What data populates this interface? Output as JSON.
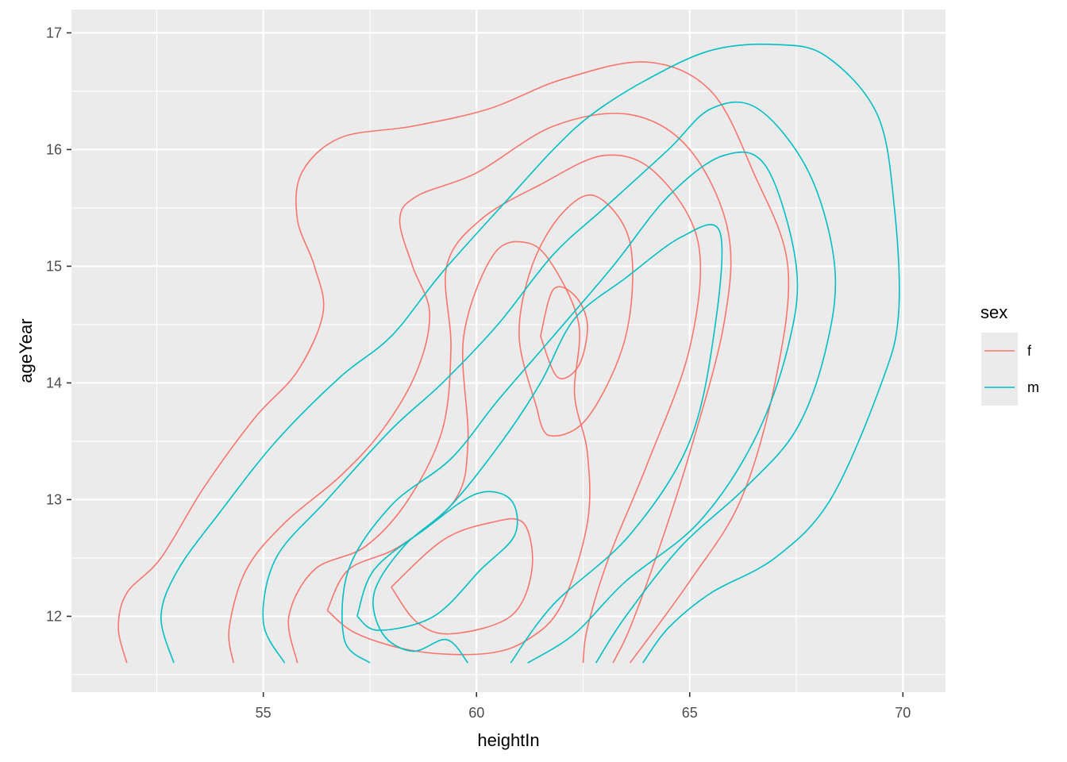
{
  "chart_data": {
    "type": "line",
    "subtype": "2d-density-contour",
    "title": "",
    "xlabel": "heightIn",
    "ylabel": "ageYear",
    "xlim": [
      50.5,
      71.0
    ],
    "ylim": [
      11.35,
      17.2
    ],
    "x_ticks": [
      55,
      60,
      65,
      70
    ],
    "x_tick_labels": [
      "55",
      "60",
      "65",
      "70"
    ],
    "y_ticks": [
      12,
      13,
      14,
      15,
      16,
      17
    ],
    "y_tick_labels": [
      "12",
      "13",
      "14",
      "15",
      "16",
      "17"
    ],
    "grid": true,
    "background": "#ebebeb",
    "legend": {
      "title": "sex",
      "position": "right",
      "entries": [
        {
          "label": "f",
          "color": "#F8766D"
        },
        {
          "label": "m",
          "color": "#00BFC4"
        }
      ]
    },
    "series": [
      {
        "name": "f",
        "color": "#F8766D",
        "contours": [
          [
            [
              51.8,
              11.6
            ],
            [
              51.6,
              11.9
            ],
            [
              51.8,
              12.2
            ],
            [
              52.6,
              12.5
            ],
            [
              53.6,
              13.1
            ],
            [
              54.8,
              13.7
            ],
            [
              55.8,
              14.1
            ],
            [
              56.4,
              14.6
            ],
            [
              56.2,
              15.0
            ],
            [
              55.8,
              15.4
            ],
            [
              55.9,
              15.8
            ],
            [
              56.8,
              16.1
            ],
            [
              58.5,
              16.2
            ],
            [
              60.3,
              16.35
            ],
            [
              62,
              16.6
            ],
            [
              64,
              16.75
            ],
            [
              65.5,
              16.5
            ],
            [
              66.5,
              15.8
            ],
            [
              67.3,
              15.0
            ],
            [
              67.0,
              14.0
            ],
            [
              66.2,
              13.0
            ],
            [
              65.0,
              12.3
            ],
            [
              63.6,
              11.6
            ]
          ],
          [
            [
              54.3,
              11.6
            ],
            [
              54.2,
              11.9
            ],
            [
              54.6,
              12.4
            ],
            [
              55.5,
              12.8
            ],
            [
              56.8,
              13.2
            ],
            [
              57.8,
              13.6
            ],
            [
              58.6,
              14.1
            ],
            [
              58.9,
              14.6
            ],
            [
              58.5,
              15.0
            ],
            [
              58.2,
              15.4
            ],
            [
              58.6,
              15.6
            ],
            [
              60.0,
              15.8
            ],
            [
              61.8,
              16.2
            ],
            [
              63.6,
              16.3
            ],
            [
              65.0,
              16.0
            ],
            [
              65.9,
              15.3
            ],
            [
              65.8,
              14.5
            ],
            [
              65.0,
              13.4
            ],
            [
              64.3,
              12.6
            ],
            [
              63.6,
              11.9
            ],
            [
              63.2,
              11.6
            ]
          ],
          [
            [
              55.8,
              11.6
            ],
            [
              55.6,
              12.0
            ],
            [
              56.2,
              12.4
            ],
            [
              57.4,
              12.6
            ],
            [
              58.4,
              13.0
            ],
            [
              59.2,
              13.6
            ],
            [
              59.4,
              14.3
            ],
            [
              59.3,
              15.0
            ],
            [
              60.1,
              15.4
            ],
            [
              61.5,
              15.7
            ],
            [
              63.0,
              15.95
            ],
            [
              64.2,
              15.8
            ],
            [
              65.2,
              15.2
            ],
            [
              65.0,
              14.3
            ],
            [
              64.0,
              13.3
            ],
            [
              63.1,
              12.5
            ],
            [
              62.6,
              11.9
            ],
            [
              62.5,
              11.6
            ]
          ],
          [
            [
              56.5,
              12.05
            ],
            [
              57.2,
              11.85
            ],
            [
              58.6,
              11.7
            ],
            [
              60.2,
              11.68
            ],
            [
              61.2,
              11.8
            ],
            [
              62.0,
              12.1
            ],
            [
              62.6,
              12.8
            ],
            [
              62.6,
              13.4
            ],
            [
              62.3,
              13.9
            ],
            [
              62.4,
              14.5
            ],
            [
              61.8,
              15.0
            ],
            [
              61.2,
              15.2
            ],
            [
              60.4,
              15.1
            ],
            [
              59.7,
              14.4
            ],
            [
              59.8,
              13.5
            ],
            [
              59.5,
              13.0
            ],
            [
              58.2,
              12.6
            ],
            [
              57.0,
              12.4
            ],
            [
              56.5,
              12.05
            ]
          ],
          [
            [
              58.0,
              12.25
            ],
            [
              58.6,
              11.95
            ],
            [
              59.4,
              11.85
            ],
            [
              60.8,
              12.0
            ],
            [
              61.3,
              12.4
            ],
            [
              61.1,
              12.8
            ],
            [
              60.3,
              12.8
            ],
            [
              59.2,
              12.65
            ],
            [
              58.0,
              12.25
            ]
          ],
          [
            [
              61.4,
              13.8
            ],
            [
              61.7,
              13.55
            ],
            [
              62.6,
              13.7
            ],
            [
              63.5,
              14.4
            ],
            [
              63.6,
              15.2
            ],
            [
              62.8,
              15.6
            ],
            [
              62.0,
              15.45
            ],
            [
              61.3,
              15.0
            ],
            [
              61.0,
              14.4
            ],
            [
              61.4,
              13.8
            ]
          ],
          [
            [
              61.5,
              14.4
            ],
            [
              61.9,
              14.05
            ],
            [
              62.4,
              14.15
            ],
            [
              62.6,
              14.5
            ],
            [
              62.3,
              14.75
            ],
            [
              61.8,
              14.8
            ],
            [
              61.5,
              14.4
            ]
          ]
        ]
      },
      {
        "name": "m",
        "color": "#00BFC4",
        "contours": [
          [
            [
              52.9,
              11.6
            ],
            [
              52.6,
              12.0
            ],
            [
              53.0,
              12.4
            ],
            [
              54.0,
              12.9
            ],
            [
              55.3,
              13.5
            ],
            [
              56.8,
              14.05
            ],
            [
              58.0,
              14.4
            ],
            [
              59.2,
              14.95
            ],
            [
              60.8,
              15.6
            ],
            [
              61.8,
              16.0
            ],
            [
              62.7,
              16.3
            ],
            [
              64.0,
              16.6
            ],
            [
              65.5,
              16.85
            ],
            [
              67.0,
              16.9
            ],
            [
              68.2,
              16.8
            ],
            [
              69.4,
              16.3
            ],
            [
              69.8,
              15.5
            ],
            [
              69.9,
              14.6
            ],
            [
              69.5,
              14.0
            ],
            [
              68.3,
              13.0
            ],
            [
              67.0,
              12.5
            ],
            [
              65.5,
              12.2
            ],
            [
              64.5,
              11.9
            ],
            [
              63.9,
              11.6
            ]
          ],
          [
            [
              55.5,
              11.6
            ],
            [
              55.0,
              11.95
            ],
            [
              55.3,
              12.5
            ],
            [
              56.5,
              13.0
            ],
            [
              58.0,
              13.6
            ],
            [
              59.2,
              14.0
            ],
            [
              60.5,
              14.5
            ],
            [
              61.8,
              15.1
            ],
            [
              63.0,
              15.5
            ],
            [
              64.5,
              16.0
            ],
            [
              65.5,
              16.35
            ],
            [
              66.6,
              16.35
            ],
            [
              67.8,
              15.8
            ],
            [
              68.4,
              15.0
            ],
            [
              68.2,
              14.3
            ],
            [
              67.5,
              13.6
            ],
            [
              66.3,
              13.1
            ],
            [
              64.8,
              12.6
            ],
            [
              63.5,
              12.0
            ],
            [
              62.8,
              11.6
            ]
          ],
          [
            [
              57.5,
              11.6
            ],
            [
              56.9,
              11.8
            ],
            [
              57.0,
              12.4
            ],
            [
              58.0,
              12.95
            ],
            [
              59.4,
              13.35
            ],
            [
              60.5,
              13.85
            ],
            [
              61.8,
              14.4
            ],
            [
              63.2,
              15.0
            ],
            [
              64.5,
              15.6
            ],
            [
              65.8,
              15.95
            ],
            [
              66.8,
              15.85
            ],
            [
              67.5,
              15.0
            ],
            [
              67.3,
              14.3
            ],
            [
              66.5,
              13.5
            ],
            [
              65.2,
              12.8
            ],
            [
              63.5,
              12.3
            ],
            [
              62.3,
              11.85
            ],
            [
              61.2,
              11.6
            ]
          ],
          [
            [
              59.8,
              11.6
            ],
            [
              59.3,
              11.8
            ],
            [
              58.5,
              11.7
            ],
            [
              57.8,
              11.85
            ],
            [
              57.6,
              12.2
            ],
            [
              58.3,
              12.6
            ],
            [
              59.4,
              12.95
            ],
            [
              60.6,
              13.5
            ],
            [
              61.5,
              14.0
            ],
            [
              62.3,
              14.55
            ],
            [
              63.5,
              14.9
            ],
            [
              64.8,
              15.25
            ],
            [
              65.7,
              15.3
            ],
            [
              65.6,
              14.5
            ],
            [
              65.0,
              13.5
            ],
            [
              63.6,
              12.7
            ],
            [
              61.8,
              12.1
            ],
            [
              60.8,
              11.6
            ]
          ],
          [
            [
              57.2,
              12.0
            ],
            [
              57.7,
              11.88
            ],
            [
              59.0,
              12.0
            ],
            [
              60.1,
              12.4
            ],
            [
              60.9,
              12.7
            ],
            [
              60.8,
              13.0
            ],
            [
              60.0,
              13.05
            ],
            [
              58.8,
              12.75
            ],
            [
              57.6,
              12.4
            ],
            [
              57.2,
              12.0
            ]
          ]
        ]
      }
    ]
  }
}
